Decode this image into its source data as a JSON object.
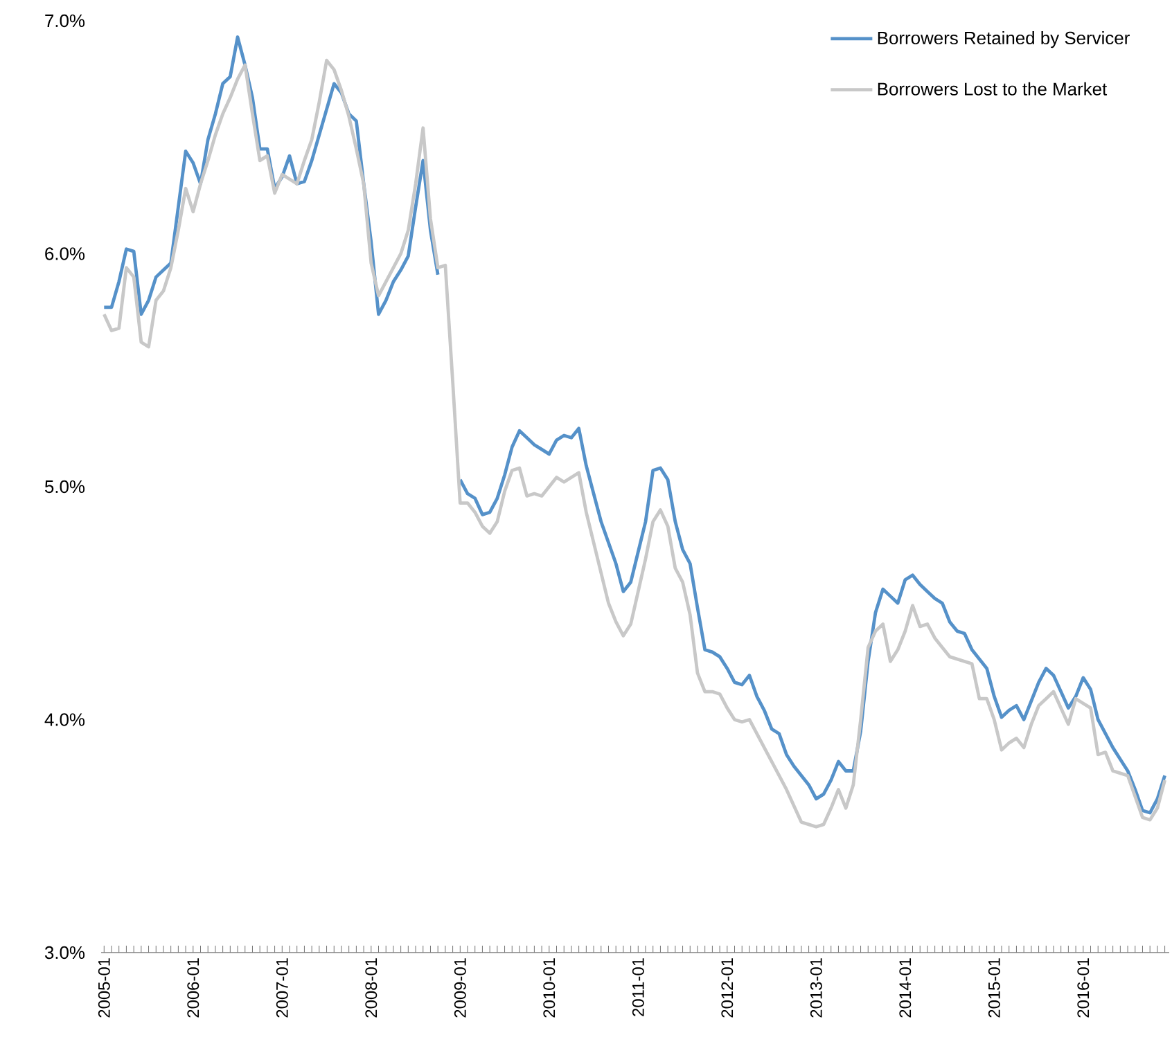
{
  "chart_data": {
    "type": "line",
    "categories": [
      "2005-01",
      null,
      null,
      null,
      null,
      null,
      null,
      null,
      null,
      null,
      null,
      null,
      "2006-01",
      null,
      null,
      null,
      null,
      null,
      null,
      null,
      null,
      null,
      null,
      null,
      "2007-01",
      null,
      null,
      null,
      null,
      null,
      null,
      null,
      null,
      null,
      null,
      null,
      "2008-01",
      null,
      null,
      null,
      null,
      null,
      null,
      null,
      null,
      null,
      null,
      null,
      "2009-01",
      null,
      null,
      null,
      null,
      null,
      null,
      null,
      null,
      null,
      null,
      null,
      "2010-01",
      null,
      null,
      null,
      null,
      null,
      null,
      null,
      null,
      null,
      null,
      null,
      "2011-01",
      null,
      null,
      null,
      null,
      null,
      null,
      null,
      null,
      null,
      null,
      null,
      "2012-01",
      null,
      null,
      null,
      null,
      null,
      null,
      null,
      null,
      null,
      null,
      null,
      "2013-01",
      null,
      null,
      null,
      null,
      null,
      null,
      null,
      null,
      null,
      null,
      null,
      "2014-01",
      null,
      null,
      null,
      null,
      null,
      null,
      null,
      null,
      null,
      null,
      null,
      "2015-01",
      null,
      null,
      null,
      null,
      null,
      null,
      null,
      null,
      null,
      null,
      null,
      "2016-01",
      null,
      null,
      null,
      null,
      null,
      null,
      null,
      null,
      null,
      null,
      null
    ],
    "series": [
      {
        "name": "Borrowers Retained by Servicer",
        "color": "#5591c9",
        "values": [
          5.77,
          5.77,
          5.88,
          6.02,
          6.01,
          5.74,
          5.8,
          5.9,
          5.93,
          5.96,
          6.2,
          6.44,
          6.39,
          6.3,
          6.49,
          6.6,
          6.73,
          6.76,
          6.93,
          6.81,
          6.67,
          6.45,
          6.45,
          6.28,
          6.33,
          6.42,
          6.3,
          6.31,
          6.4,
          6.51,
          6.62,
          6.73,
          6.69,
          6.6,
          6.57,
          6.3,
          6.05,
          5.74,
          5.8,
          5.88,
          5.93,
          5.99,
          6.2,
          6.4,
          6.1,
          5.91,
          null,
          null,
          5.03,
          4.97,
          4.95,
          4.88,
          4.89,
          4.95,
          5.05,
          5.17,
          5.24,
          5.21,
          5.18,
          5.16,
          5.14,
          5.2,
          5.22,
          5.21,
          5.25,
          5.09,
          4.97,
          4.85,
          4.76,
          4.67,
          4.55,
          4.59,
          4.72,
          4.85,
          5.07,
          5.08,
          5.03,
          4.85,
          4.73,
          4.67,
          4.48,
          4.3,
          4.29,
          4.27,
          4.22,
          4.16,
          4.15,
          4.19,
          4.1,
          4.04,
          3.96,
          3.94,
          3.85,
          3.8,
          3.76,
          3.72,
          3.66,
          3.68,
          3.74,
          3.82,
          3.78,
          3.78,
          3.95,
          4.25,
          4.46,
          4.56,
          4.53,
          4.5,
          4.6,
          4.62,
          4.58,
          4.55,
          4.52,
          4.5,
          4.42,
          4.38,
          4.37,
          4.3,
          4.26,
          4.22,
          4.1,
          4.01,
          4.04,
          4.06,
          4.0,
          4.08,
          4.16,
          4.22,
          4.19,
          4.12,
          4.05,
          4.1,
          4.18,
          4.13,
          4.0,
          3.94,
          3.88,
          3.83,
          3.78,
          3.7,
          3.61,
          3.6,
          3.66,
          3.76
        ]
      },
      {
        "name": "Borrowers Lost to the Market",
        "color": "#c8c8c8",
        "values": [
          5.74,
          5.67,
          5.68,
          5.94,
          5.9,
          5.62,
          5.6,
          5.8,
          5.84,
          5.94,
          6.1,
          6.28,
          6.18,
          6.3,
          6.4,
          6.51,
          6.6,
          6.67,
          6.75,
          6.81,
          6.6,
          6.4,
          6.42,
          6.26,
          6.34,
          6.32,
          6.3,
          6.4,
          6.49,
          6.65,
          6.83,
          6.79,
          6.7,
          6.59,
          6.45,
          6.3,
          5.96,
          5.82,
          5.88,
          5.94,
          6.0,
          6.1,
          6.3,
          6.54,
          6.15,
          5.94,
          5.95,
          5.45,
          4.93,
          4.93,
          4.89,
          4.83,
          4.8,
          4.85,
          4.98,
          5.07,
          5.08,
          4.96,
          4.97,
          4.96,
          5.0,
          5.04,
          5.02,
          5.04,
          5.06,
          4.89,
          4.76,
          4.63,
          4.5,
          4.42,
          4.36,
          4.41,
          4.55,
          4.69,
          4.85,
          4.9,
          4.83,
          4.65,
          4.59,
          4.45,
          4.2,
          4.12,
          4.12,
          4.11,
          4.05,
          4.0,
          3.99,
          4.0,
          3.94,
          3.88,
          3.82,
          3.76,
          3.7,
          3.63,
          3.56,
          3.55,
          3.54,
          3.55,
          3.62,
          3.7,
          3.62,
          3.72,
          4.0,
          4.31,
          4.38,
          4.41,
          4.25,
          4.3,
          4.38,
          4.49,
          4.4,
          4.41,
          4.35,
          4.31,
          4.27,
          4.26,
          4.25,
          4.24,
          4.09,
          4.09,
          4.0,
          3.87,
          3.9,
          3.92,
          3.88,
          3.98,
          4.06,
          4.09,
          4.12,
          4.05,
          3.98,
          4.09,
          4.07,
          4.05,
          3.85,
          3.86,
          3.78,
          3.77,
          3.76,
          3.67,
          3.58,
          3.57,
          3.62,
          3.74
        ]
      }
    ],
    "ylim": [
      3,
      7
    ],
    "yticks": [
      {
        "value": 3,
        "label": "3.0%"
      },
      {
        "value": 4,
        "label": "4.0%"
      },
      {
        "value": 5,
        "label": "5.0%"
      },
      {
        "value": 6,
        "label": "6.0%"
      },
      {
        "value": 7,
        "label": "7.0%"
      }
    ],
    "legend": "top right",
    "line_style": "solid"
  }
}
